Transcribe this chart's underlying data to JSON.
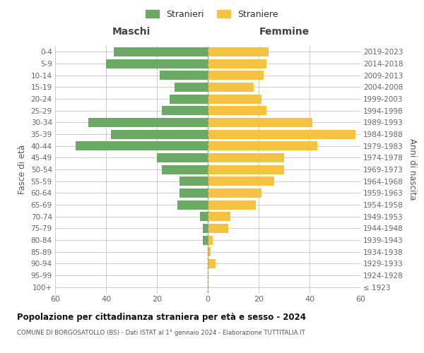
{
  "age_groups": [
    "100+",
    "95-99",
    "90-94",
    "85-89",
    "80-84",
    "75-79",
    "70-74",
    "65-69",
    "60-64",
    "55-59",
    "50-54",
    "45-49",
    "40-44",
    "35-39",
    "30-34",
    "25-29",
    "20-24",
    "15-19",
    "10-14",
    "5-9",
    "0-4"
  ],
  "birth_years": [
    "≤ 1923",
    "1924-1928",
    "1929-1933",
    "1934-1938",
    "1939-1943",
    "1944-1948",
    "1949-1953",
    "1954-1958",
    "1959-1963",
    "1964-1968",
    "1969-1973",
    "1974-1978",
    "1979-1983",
    "1984-1988",
    "1989-1993",
    "1994-1998",
    "1999-2003",
    "2004-2008",
    "2009-2013",
    "2014-2018",
    "2019-2023"
  ],
  "males": [
    0,
    0,
    0,
    0,
    2,
    2,
    3,
    12,
    11,
    11,
    18,
    20,
    52,
    38,
    47,
    18,
    15,
    13,
    19,
    40,
    37
  ],
  "females": [
    0,
    0,
    3,
    1,
    2,
    8,
    9,
    19,
    21,
    26,
    30,
    30,
    43,
    58,
    41,
    23,
    21,
    18,
    22,
    23,
    24
  ],
  "male_color": "#6aaa64",
  "female_color": "#f5c242",
  "male_label": "Stranieri",
  "female_label": "Straniere",
  "xlabel_left": "Maschi",
  "xlabel_right": "Femmine",
  "ylabel_left": "Fasce di età",
  "ylabel_right": "Anni di nascita",
  "title": "Popolazione per cittadinanza straniera per età e sesso - 2024",
  "subtitle": "COMUNE DI BORGOSATOLLO (BS) - Dati ISTAT al 1° gennaio 2024 - Elaborazione TUTTITALIA.IT",
  "xlim": 60,
  "background_color": "#ffffff",
  "grid_color": "#cccccc"
}
